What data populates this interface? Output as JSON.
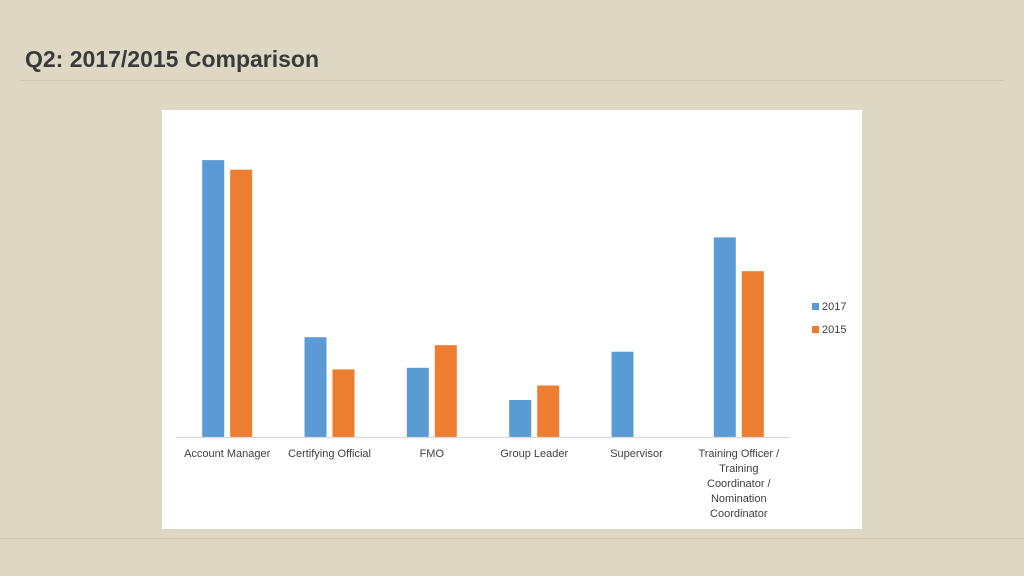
{
  "slide": {
    "title": "Q2: 2017/2015 Comparison"
  },
  "colors": {
    "series_2017": "#5b9bd5",
    "series_2015": "#ed7d31",
    "axis": "#d9d9d9"
  },
  "chart_data": {
    "type": "bar",
    "title": "",
    "xlabel": "",
    "ylabel": "",
    "grid": false,
    "legend_position": "right",
    "ylim": [
      0,
      100
    ],
    "categories": [
      [
        "Account Manager"
      ],
      [
        "Certifying Official"
      ],
      [
        "FMO"
      ],
      [
        "Group Leader"
      ],
      [
        "Supervisor"
      ],
      [
        "Training Officer /",
        "Training",
        "Coordinator /",
        "Nomination",
        "Coordinator"
      ]
    ],
    "series": [
      {
        "name": "2017",
        "values": [
          86,
          31,
          21.5,
          11.5,
          26.5,
          62
        ]
      },
      {
        "name": "2015",
        "values": [
          83,
          21,
          28.5,
          16,
          0,
          51.5
        ]
      }
    ]
  }
}
